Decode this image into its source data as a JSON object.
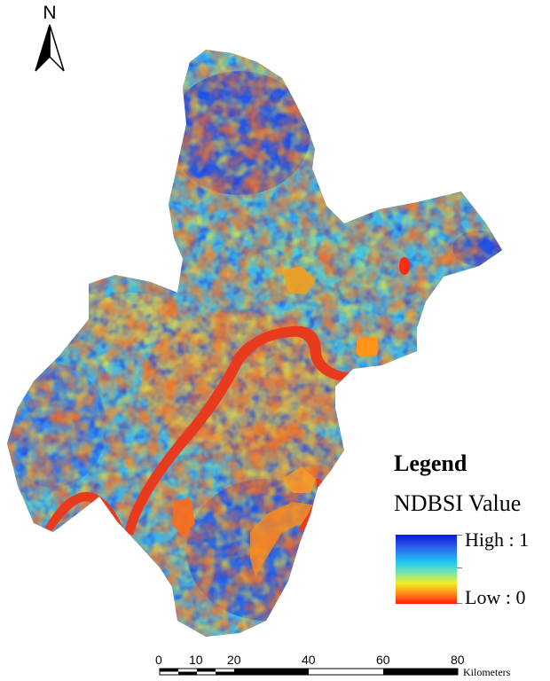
{
  "north_arrow": {
    "letter": "N"
  },
  "legend": {
    "title": "Legend",
    "field": "NDBSI Value",
    "high_label": "High : 1",
    "low_label": "Low : 0",
    "ramp_colors": [
      "#0a18d8",
      "#2a60f0",
      "#22c8f4",
      "#7ee6a0",
      "#f0f026",
      "#ff8a1a",
      "#ff1a0a"
    ]
  },
  "scale_bar": {
    "ticks": [
      "0",
      "10",
      "20",
      "40",
      "60",
      "80"
    ],
    "unit": "Kilometers"
  },
  "map_colors": {
    "river": "#e83a1c",
    "high": "#1f49e6",
    "mid": "#3fb6e8",
    "low": "#f05a1e"
  }
}
